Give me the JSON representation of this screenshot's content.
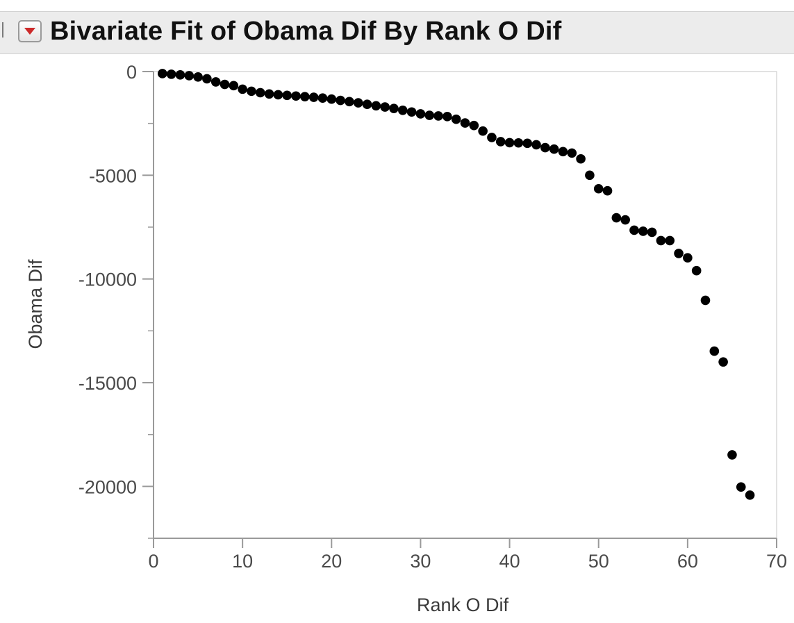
{
  "report": {
    "title": "Bivariate Fit of Obama Dif By Rank O Dif",
    "disclosure_icon": "red-down-triangle-icon",
    "accent_color": "#cc2a2a"
  },
  "chart_data": {
    "type": "scatter",
    "title": "Bivariate Fit of Obama Dif By Rank O Dif",
    "xlabel": "Rank O Dif",
    "ylabel": "Obama Dif",
    "xlim": [
      0,
      70
    ],
    "ylim": [
      -22500,
      0
    ],
    "xticks": [
      0,
      10,
      20,
      30,
      40,
      50,
      60,
      70
    ],
    "yticks": [
      0,
      -5000,
      -10000,
      -15000,
      -20000
    ],
    "yticks_minor": [
      -2500,
      -7500,
      -12500,
      -17500,
      -22500
    ],
    "marker_color": "#000000",
    "grid": false,
    "points": [
      {
        "x": 1,
        "y": -100
      },
      {
        "x": 2,
        "y": -130
      },
      {
        "x": 3,
        "y": -160
      },
      {
        "x": 4,
        "y": -200
      },
      {
        "x": 5,
        "y": -260
      },
      {
        "x": 6,
        "y": -350
      },
      {
        "x": 7,
        "y": -500
      },
      {
        "x": 8,
        "y": -620
      },
      {
        "x": 9,
        "y": -680
      },
      {
        "x": 10,
        "y": -850
      },
      {
        "x": 11,
        "y": -950
      },
      {
        "x": 12,
        "y": -1020
      },
      {
        "x": 13,
        "y": -1080
      },
      {
        "x": 14,
        "y": -1120
      },
      {
        "x": 15,
        "y": -1150
      },
      {
        "x": 16,
        "y": -1180
      },
      {
        "x": 17,
        "y": -1210
      },
      {
        "x": 18,
        "y": -1240
      },
      {
        "x": 19,
        "y": -1280
      },
      {
        "x": 20,
        "y": -1330
      },
      {
        "x": 21,
        "y": -1390
      },
      {
        "x": 22,
        "y": -1450
      },
      {
        "x": 23,
        "y": -1510
      },
      {
        "x": 24,
        "y": -1580
      },
      {
        "x": 25,
        "y": -1650
      },
      {
        "x": 26,
        "y": -1710
      },
      {
        "x": 27,
        "y": -1780
      },
      {
        "x": 28,
        "y": -1870
      },
      {
        "x": 29,
        "y": -1950
      },
      {
        "x": 30,
        "y": -2040
      },
      {
        "x": 31,
        "y": -2110
      },
      {
        "x": 32,
        "y": -2140
      },
      {
        "x": 33,
        "y": -2170
      },
      {
        "x": 34,
        "y": -2300
      },
      {
        "x": 35,
        "y": -2480
      },
      {
        "x": 36,
        "y": -2600
      },
      {
        "x": 37,
        "y": -2870
      },
      {
        "x": 38,
        "y": -3180
      },
      {
        "x": 39,
        "y": -3380
      },
      {
        "x": 40,
        "y": -3430
      },
      {
        "x": 41,
        "y": -3440
      },
      {
        "x": 42,
        "y": -3460
      },
      {
        "x": 43,
        "y": -3530
      },
      {
        "x": 44,
        "y": -3670
      },
      {
        "x": 45,
        "y": -3740
      },
      {
        "x": 46,
        "y": -3860
      },
      {
        "x": 47,
        "y": -3930
      },
      {
        "x": 48,
        "y": -4210
      },
      {
        "x": 49,
        "y": -5000
      },
      {
        "x": 50,
        "y": -5650
      },
      {
        "x": 51,
        "y": -5750
      },
      {
        "x": 52,
        "y": -7050
      },
      {
        "x": 53,
        "y": -7150
      },
      {
        "x": 54,
        "y": -7650
      },
      {
        "x": 55,
        "y": -7700
      },
      {
        "x": 56,
        "y": -7750
      },
      {
        "x": 57,
        "y": -8150
      },
      {
        "x": 58,
        "y": -8150
      },
      {
        "x": 59,
        "y": -8770
      },
      {
        "x": 60,
        "y": -8980
      },
      {
        "x": 61,
        "y": -9600
      },
      {
        "x": 62,
        "y": -11030
      },
      {
        "x": 63,
        "y": -13480
      },
      {
        "x": 64,
        "y": -14000
      },
      {
        "x": 65,
        "y": -18480
      },
      {
        "x": 66,
        "y": -20030
      },
      {
        "x": 67,
        "y": -20420
      }
    ]
  }
}
